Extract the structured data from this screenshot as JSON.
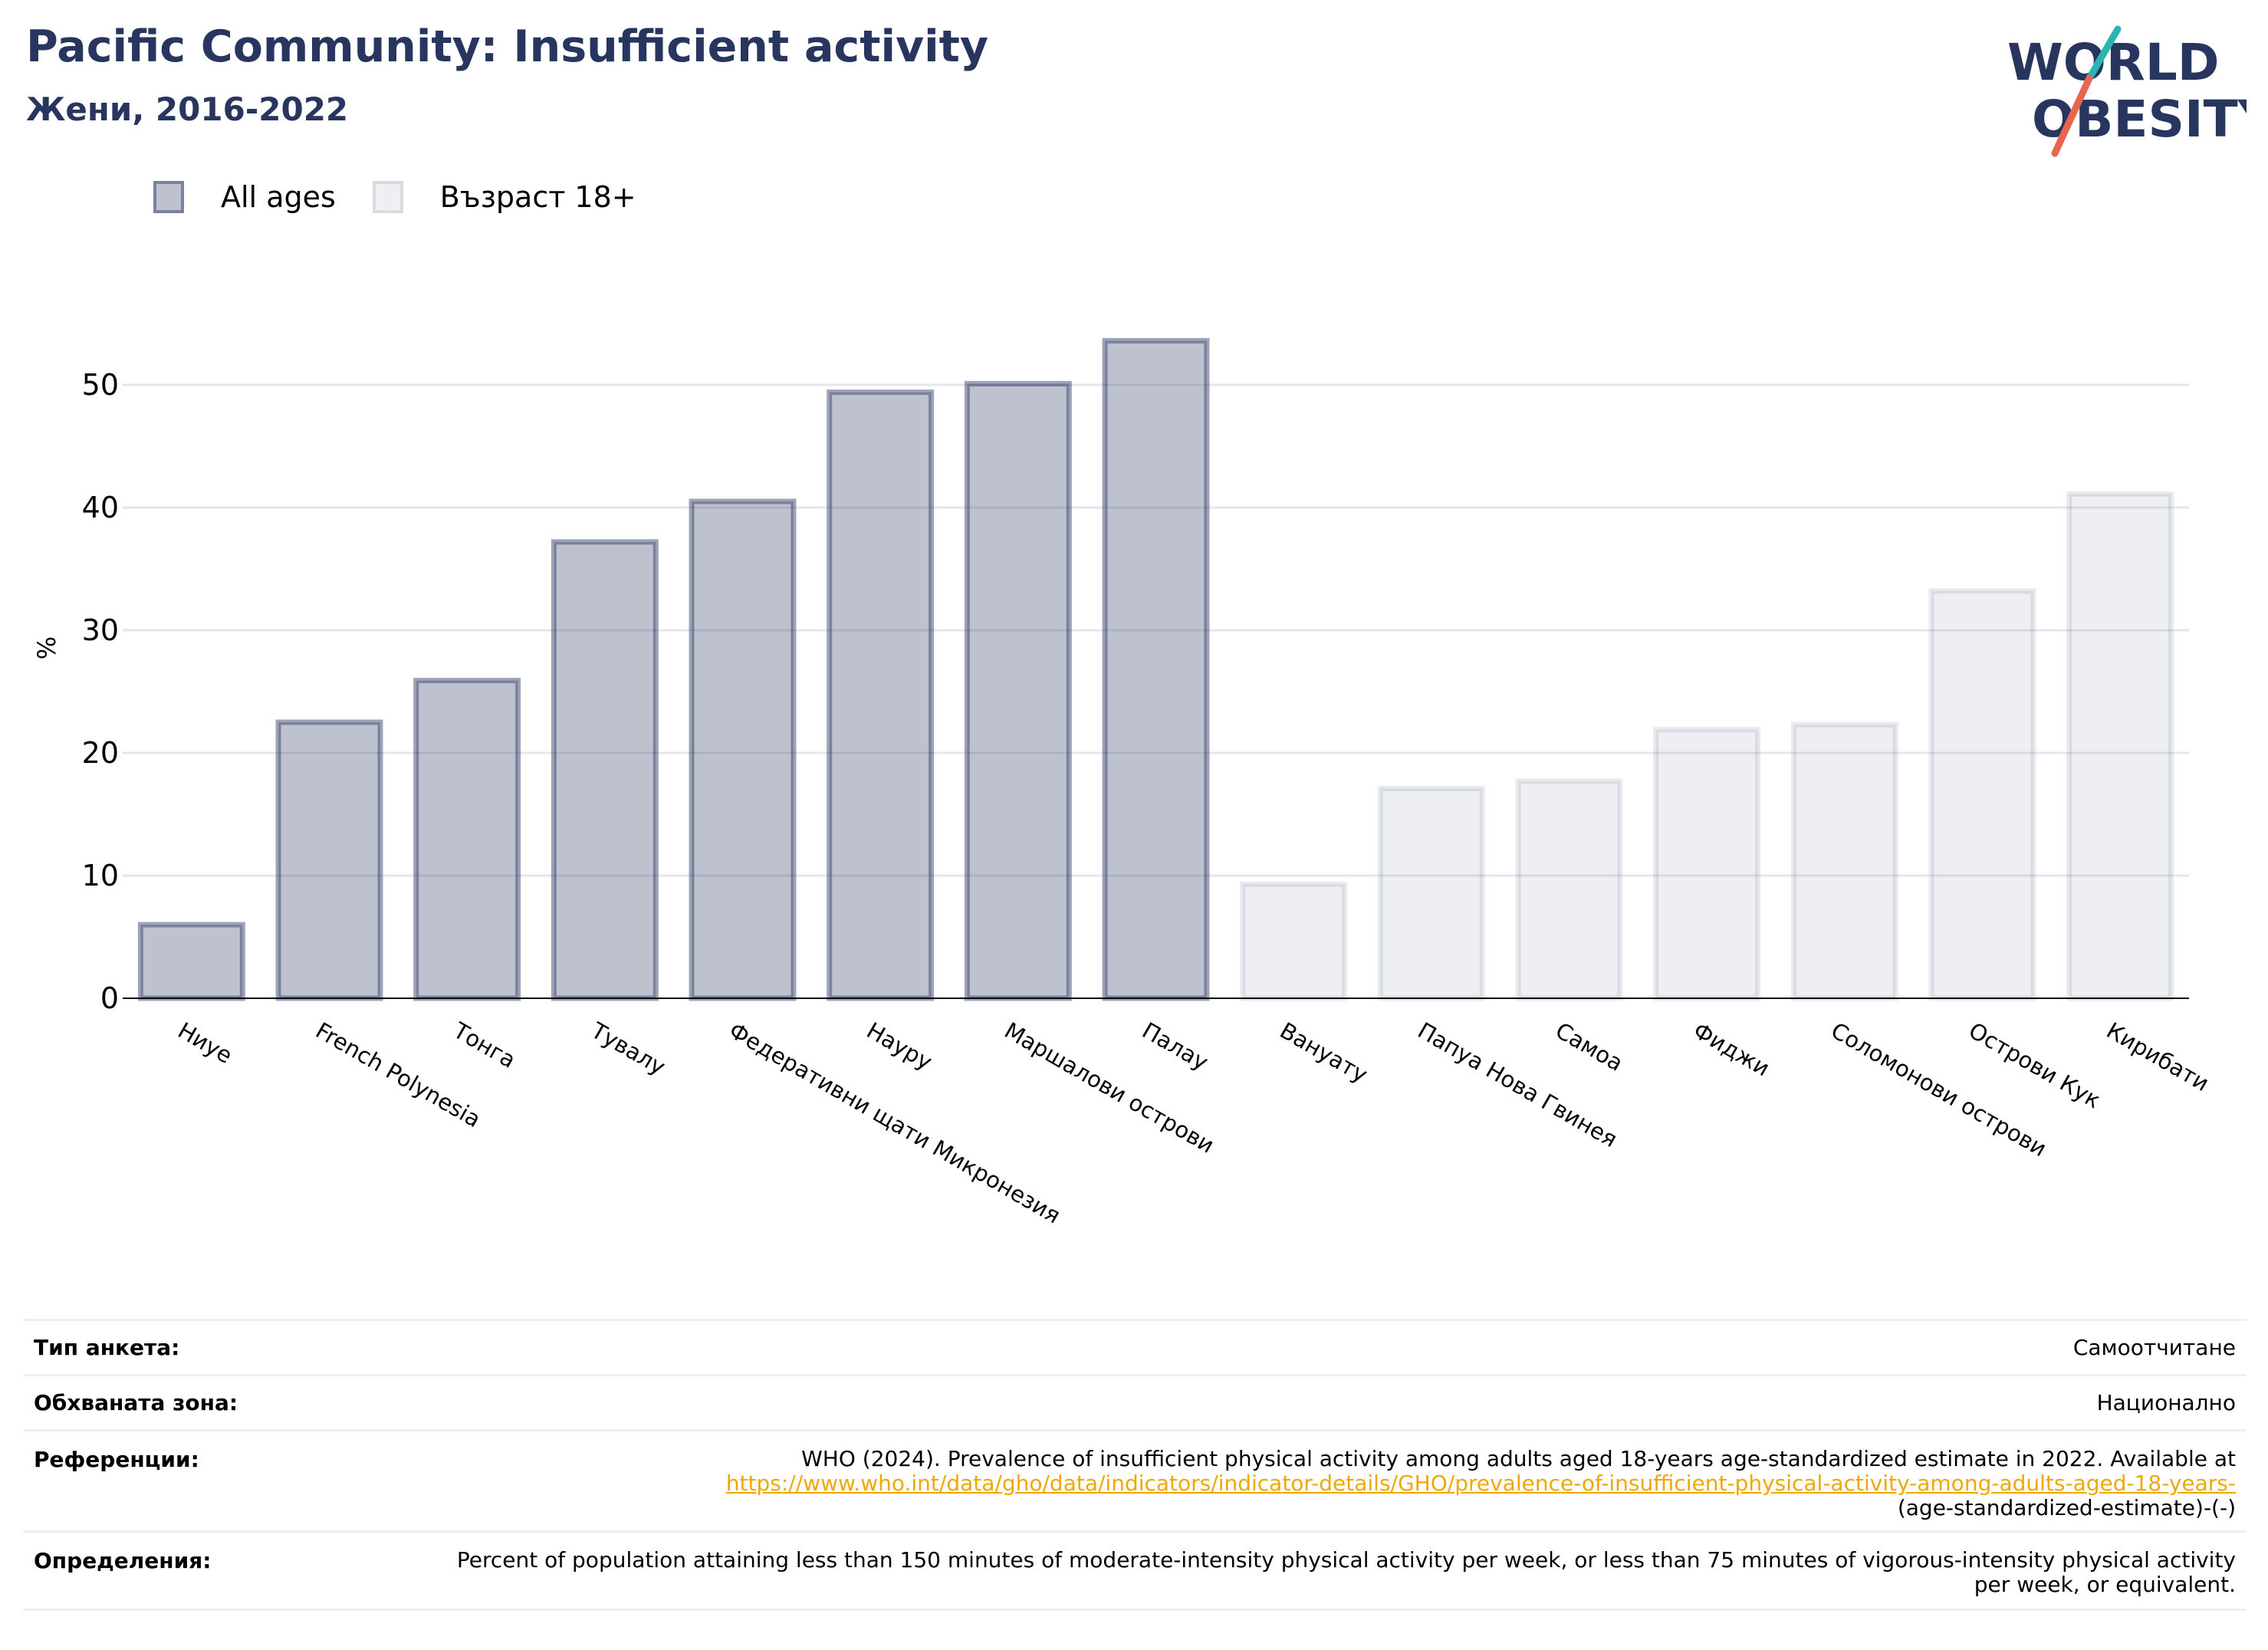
{
  "header": {
    "title": "Pacific Community: Insufficient activity",
    "subtitle": "Жени, 2016-2022"
  },
  "logo": {
    "line1": "WORLD",
    "line2": "OBESITY"
  },
  "colors": {
    "primary": "#27355f",
    "grid": "#e6e6ee",
    "logo_teal": "#2bb4b4",
    "logo_coral": "#e8654f",
    "link": "#f0a800"
  },
  "chart_data": {
    "type": "bar",
    "ylabel": "%",
    "ylim": [
      0,
      57
    ],
    "yticks": [
      0,
      10,
      20,
      30,
      40,
      50
    ],
    "grid": true,
    "legend_position": "top-left",
    "series": [
      {
        "name": "All ages",
        "color": "#27355f",
        "categories": [
          "Ниуе",
          "French Polynesia",
          "Тонга",
          "Тувалу",
          "Федеративни щати Микронезия",
          "Науру",
          "Маршалови острови",
          "Палау"
        ],
        "values": [
          6.0,
          22.5,
          25.9,
          37.2,
          40.5,
          49.4,
          50.1,
          53.6
        ]
      },
      {
        "name": "Възраст 18+",
        "color": "#e8e8ee",
        "categories": [
          "Вануату",
          "Папуа Нова Гвинея",
          "Самоа",
          "Фиджи",
          "Соломонови острови",
          "Острови Кук",
          "Кирибати"
        ],
        "values": [
          9.3,
          17.1,
          17.7,
          21.9,
          22.3,
          33.2,
          41.1
        ]
      }
    ]
  },
  "meta": {
    "rows": [
      {
        "label": "Тип анкета:",
        "value": "Самоотчитане"
      },
      {
        "label": "Обхваната зона:",
        "value": "Национално"
      }
    ],
    "references": {
      "label": "Референции:",
      "text": "WHO (2024). Prevalence of insufficient physical activity among adults aged 18-years age-standardized estimate in 2022. Available at",
      "link": "https://www.who.int/data/gho/data/indicators/indicator-details/GHO/prevalence-of-insufficient-physical-activity-among-adults-aged-18-years-",
      "tail": "(age-standardized-estimate)-(-)"
    },
    "definitions": {
      "label": "Определения:",
      "text": "Percent of population attaining less than 150 minutes of moderate-intensity physical activity per week, or less than 75 minutes of vigorous-intensity physical activity per week, or equivalent."
    }
  }
}
